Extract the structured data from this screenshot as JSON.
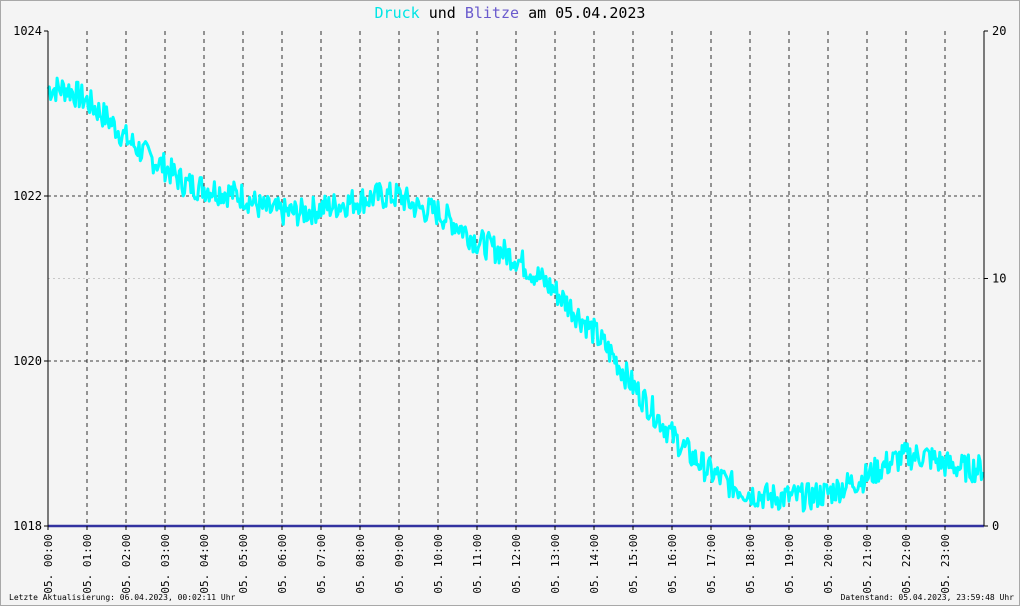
{
  "title": {
    "series1": "Druck",
    "connector": "und",
    "series2": "Blitze",
    "date_prefix": "am",
    "date": "05.04.2023"
  },
  "colors": {
    "background": "#f4f4f4",
    "pressure": "#00ffff",
    "lightning": "#3232a0",
    "lightning_title": "#6a5acd",
    "grid": "#000000",
    "minor_grid": "#c8c8c8"
  },
  "footer": {
    "last_update": "Letzte Aktualisierung: 06.04.2023, 00:02:11 Uhr",
    "data_status": "Datenstand: 05.04.2023, 23:59:48 Uhr"
  },
  "chart_data": {
    "type": "line",
    "x_ticks": [
      "05. 00:00",
      "05. 01:00",
      "05. 02:00",
      "05. 03:00",
      "05. 04:00",
      "05. 05:00",
      "05. 06:00",
      "05. 07:00",
      "05. 08:00",
      "05. 09:00",
      "05. 10:00",
      "05. 11:00",
      "05. 12:00",
      "05. 13:00",
      "05. 14:00",
      "05. 15:00",
      "05. 16:00",
      "05. 17:00",
      "05. 18:00",
      "05. 19:00",
      "05. 20:00",
      "05. 21:00",
      "05. 22:00",
      "05. 23:00"
    ],
    "x_range_hours": [
      0,
      24
    ],
    "y_left": {
      "ticks": [
        "1024",
        "1022",
        "1020",
        "1018"
      ],
      "range": [
        1018,
        1024
      ]
    },
    "y_right": {
      "ticks": [
        "20",
        "10",
        "0"
      ],
      "range": [
        0,
        20
      ]
    },
    "grid": true,
    "series": [
      {
        "name": "Druck",
        "axis": "left",
        "x": [
          0,
          0.5,
          1,
          1.5,
          2,
          2.5,
          3,
          3.5,
          4,
          4.5,
          5,
          5.5,
          6,
          6.5,
          7,
          7.5,
          8,
          8.5,
          9,
          9.5,
          10,
          10.5,
          11,
          11.5,
          12,
          12.5,
          13,
          13.5,
          14,
          14.5,
          15,
          15.5,
          16,
          16.5,
          17,
          17.5,
          18,
          18.5,
          19,
          19.5,
          20,
          20.5,
          21,
          21.5,
          22,
          22.5,
          23,
          23.5,
          24
        ],
        "values": [
          1023.3,
          1023.3,
          1023.15,
          1022.95,
          1022.7,
          1022.5,
          1022.35,
          1022.15,
          1022.1,
          1022.05,
          1022.0,
          1021.85,
          1021.8,
          1021.8,
          1021.85,
          1021.9,
          1021.95,
          1022.0,
          1022.0,
          1021.85,
          1021.8,
          1021.65,
          1021.45,
          1021.35,
          1021.25,
          1021.05,
          1020.85,
          1020.6,
          1020.35,
          1020.05,
          1019.7,
          1019.4,
          1019.1,
          1018.85,
          1018.65,
          1018.5,
          1018.4,
          1018.35,
          1018.35,
          1018.35,
          1018.4,
          1018.5,
          1018.6,
          1018.75,
          1018.85,
          1018.85,
          1018.75,
          1018.7,
          1018.7
        ]
      },
      {
        "name": "Blitze",
        "axis": "right",
        "x": [
          0,
          24
        ],
        "values": [
          0,
          0
        ]
      }
    ]
  }
}
